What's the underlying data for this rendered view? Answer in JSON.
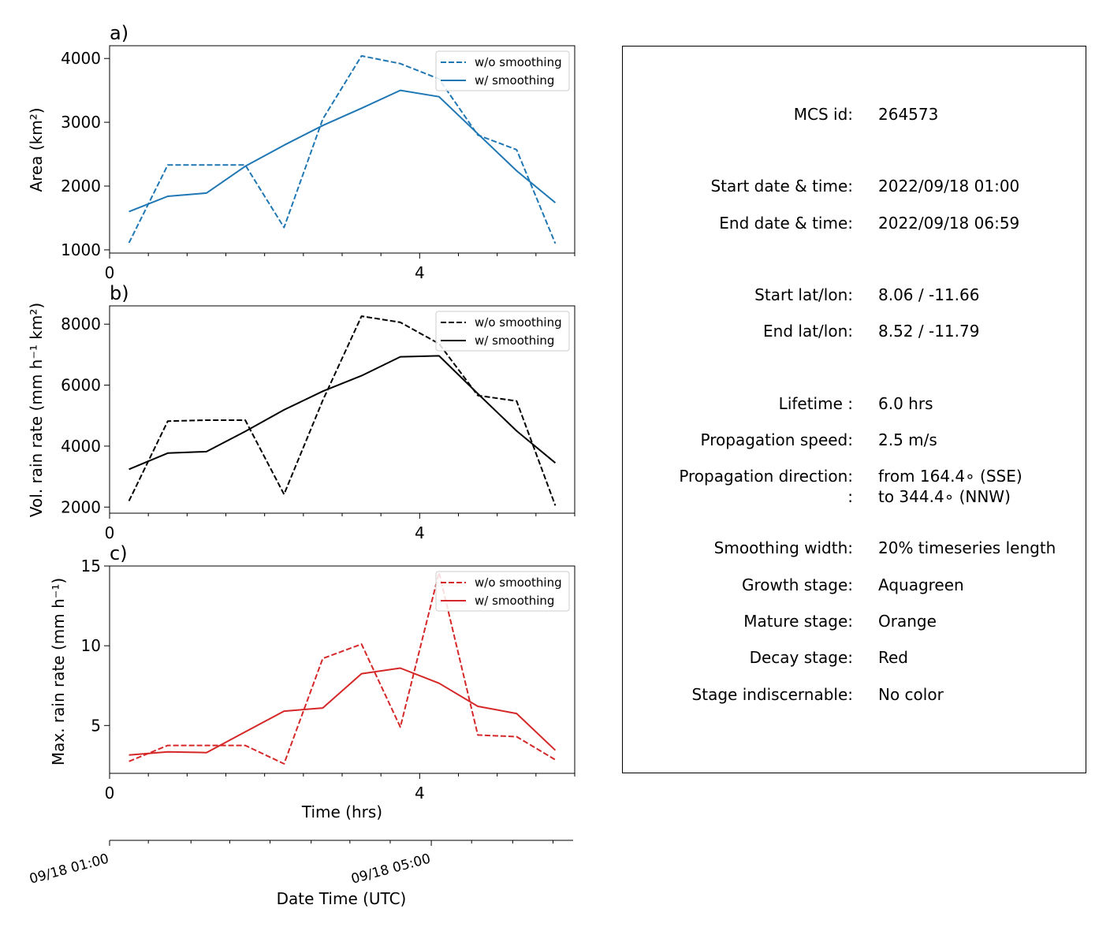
{
  "chart_data": [
    {
      "type": "line",
      "panel_label": "a)",
      "ylabel": "Area  (km²)",
      "xlim": [
        0,
        6
      ],
      "ylim": [
        950,
        4200
      ],
      "yticks": [
        1000,
        2000,
        3000,
        4000
      ],
      "xtick_labels": [
        {
          "x": 0,
          "label": "0"
        },
        {
          "x": 4,
          "label": "4"
        }
      ],
      "x_minor": [
        0.5,
        1,
        1.5,
        2,
        2.5,
        3,
        3.5,
        4.5,
        5,
        5.5,
        6
      ],
      "color": "#1f77b4",
      "legend_position": "top-right",
      "x": [
        0.25,
        0.75,
        1.25,
        1.75,
        2.25,
        2.75,
        3.25,
        3.75,
        4.25,
        4.75,
        5.25,
        5.75
      ],
      "series": [
        {
          "name": "w/o smoothing",
          "style": "dashed",
          "values": [
            1110,
            2330,
            2330,
            2330,
            1350,
            3050,
            4040,
            3920,
            3680,
            2800,
            2570,
            1100
          ]
        },
        {
          "name": "w/ smoothing",
          "style": "solid",
          "values": [
            1600,
            1840,
            1890,
            2310,
            2640,
            2950,
            3220,
            3500,
            3400,
            2820,
            2240,
            1740
          ]
        }
      ]
    },
    {
      "type": "line",
      "panel_label": "b)",
      "ylabel": "Vol. rain rate (mm h⁻¹ km²)",
      "xlim": [
        0,
        6
      ],
      "ylim": [
        1800,
        8600
      ],
      "yticks": [
        2000,
        4000,
        6000,
        8000
      ],
      "xtick_labels": [
        {
          "x": 0,
          "label": "0"
        },
        {
          "x": 4,
          "label": "4"
        }
      ],
      "x_minor": [
        0.5,
        1,
        1.5,
        2,
        2.5,
        3,
        3.5,
        4.5,
        5,
        5.5,
        6
      ],
      "color": "#000000",
      "legend_position": "top-right",
      "x": [
        0.25,
        0.75,
        1.25,
        1.75,
        2.25,
        2.75,
        3.25,
        3.75,
        4.25,
        4.75,
        5.25,
        5.75
      ],
      "series": [
        {
          "name": "w/o smoothing",
          "style": "dashed",
          "values": [
            2200,
            4820,
            4850,
            4850,
            2420,
            5500,
            8260,
            8060,
            7360,
            5660,
            5480,
            2050
          ]
        },
        {
          "name": "w/ smoothing",
          "style": "solid",
          "values": [
            3240,
            3770,
            3820,
            4480,
            5190,
            5800,
            6310,
            6930,
            6960,
            5720,
            4500,
            3450
          ]
        }
      ]
    },
    {
      "type": "line",
      "panel_label": "c)",
      "ylabel": "Max. rain rate  (mm h⁻¹)",
      "xlabel": "Time (hrs)",
      "xlim": [
        0,
        6
      ],
      "ylim": [
        2,
        15
      ],
      "yticks": [
        5,
        10,
        15
      ],
      "xtick_labels": [
        {
          "x": 0,
          "label": "0"
        },
        {
          "x": 4,
          "label": "4"
        }
      ],
      "x_minor": [
        0.5,
        1,
        1.5,
        2,
        2.5,
        3,
        3.5,
        4.5,
        5,
        5.5,
        6
      ],
      "color": "#d62728",
      "legend_position": "top-right",
      "x": [
        0.25,
        0.75,
        1.25,
        1.75,
        2.25,
        2.75,
        3.25,
        3.75,
        4.25,
        4.75,
        5.25,
        5.75
      ],
      "series": [
        {
          "name": "w/o smoothing",
          "style": "dashed",
          "values": [
            2.75,
            3.75,
            3.75,
            3.75,
            2.6,
            9.2,
            10.1,
            4.9,
            14.6,
            4.4,
            4.3,
            2.85
          ]
        },
        {
          "name": "w/ smoothing",
          "style": "solid",
          "values": [
            3.15,
            3.35,
            3.3,
            4.6,
            5.9,
            6.1,
            8.25,
            8.6,
            7.65,
            6.2,
            5.75,
            3.45
          ]
        }
      ]
    }
  ],
  "datetime_axis": {
    "label": "Date Time (UTC)",
    "xlim": [
      0,
      6
    ],
    "ticks": [
      {
        "x": 0,
        "label": "09/18 01:00"
      },
      {
        "x": 4.15,
        "label": "09/18 05:00"
      }
    ],
    "minor": [
      0.5,
      1.05,
      1.55,
      2.07,
      2.6,
      3.1,
      3.62,
      4.67,
      5.2,
      5.72
    ]
  },
  "info": {
    "groups": [
      [
        {
          "label": "MCS id:",
          "value": "264573"
        }
      ],
      [
        {
          "label": "Start date & time:",
          "value": "2022/09/18 01:00"
        },
        {
          "label": "End date & time:",
          "value": "2022/09/18 06:59"
        }
      ],
      [
        {
          "label": "Start lat/lon:",
          "value": "8.06 / -11.66"
        },
        {
          "label": "End lat/lon:",
          "value": "8.52 / -11.79"
        }
      ],
      [
        {
          "label": "Lifetime :",
          "value": "6.0 hrs"
        },
        {
          "label": "Propagation speed:",
          "value": "2.5 m/s"
        },
        {
          "label": "Propagation direction:",
          "value": "from 164.4∘ (SSE)",
          "label2": ":",
          "value2": "to   344.4∘ (NNW)"
        }
      ],
      [
        {
          "label": "Smoothing width:",
          "value": "20% timeseries length"
        },
        {
          "label": "Growth stage:",
          "value": "Aquagreen"
        },
        {
          "label": "Mature stage:",
          "value": "Orange"
        },
        {
          "label": "Decay stage:",
          "value": "Red"
        },
        {
          "label": "Stage indiscernable:",
          "value": "No color"
        }
      ]
    ]
  }
}
